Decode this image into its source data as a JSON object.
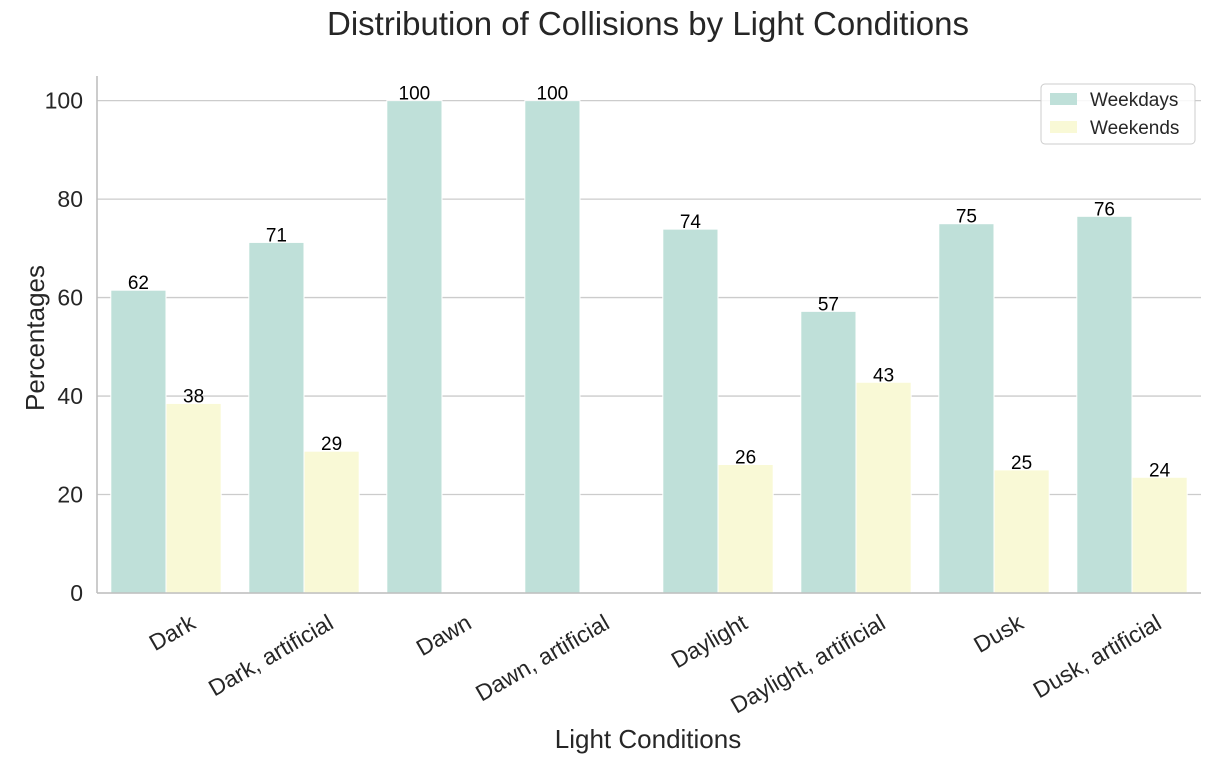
{
  "chart_data": {
    "type": "bar",
    "title": "Distribution of Collisions by Light Conditions",
    "xlabel": "Light Conditions",
    "ylabel": "Percentages",
    "categories": [
      "Dark",
      "Dark, artificial",
      "Dawn",
      "Dawn, artificial",
      "Daylight",
      "Daylight, artificial",
      "Dusk",
      "Dusk, artificial"
    ],
    "series": [
      {
        "name": "Weekdays",
        "values": [
          62,
          71,
          100,
          100,
          74,
          57,
          75,
          76
        ],
        "exact": [
          61.5,
          71.2,
          100,
          100,
          73.9,
          57.2,
          75.0,
          76.5
        ],
        "color": "#bfe0d9"
      },
      {
        "name": "Weekends",
        "values": [
          38,
          29,
          null,
          null,
          26,
          43,
          25,
          24
        ],
        "exact": [
          38.5,
          28.8,
          null,
          null,
          26.1,
          42.8,
          25.0,
          23.5
        ],
        "color": "#f9f9d6"
      }
    ],
    "ylim": [
      0,
      105
    ],
    "yticks": [
      0,
      20,
      40,
      60,
      80,
      100
    ],
    "grid": "horizontal",
    "legend": "top-right",
    "xtick_rotation": "30 degrees"
  }
}
